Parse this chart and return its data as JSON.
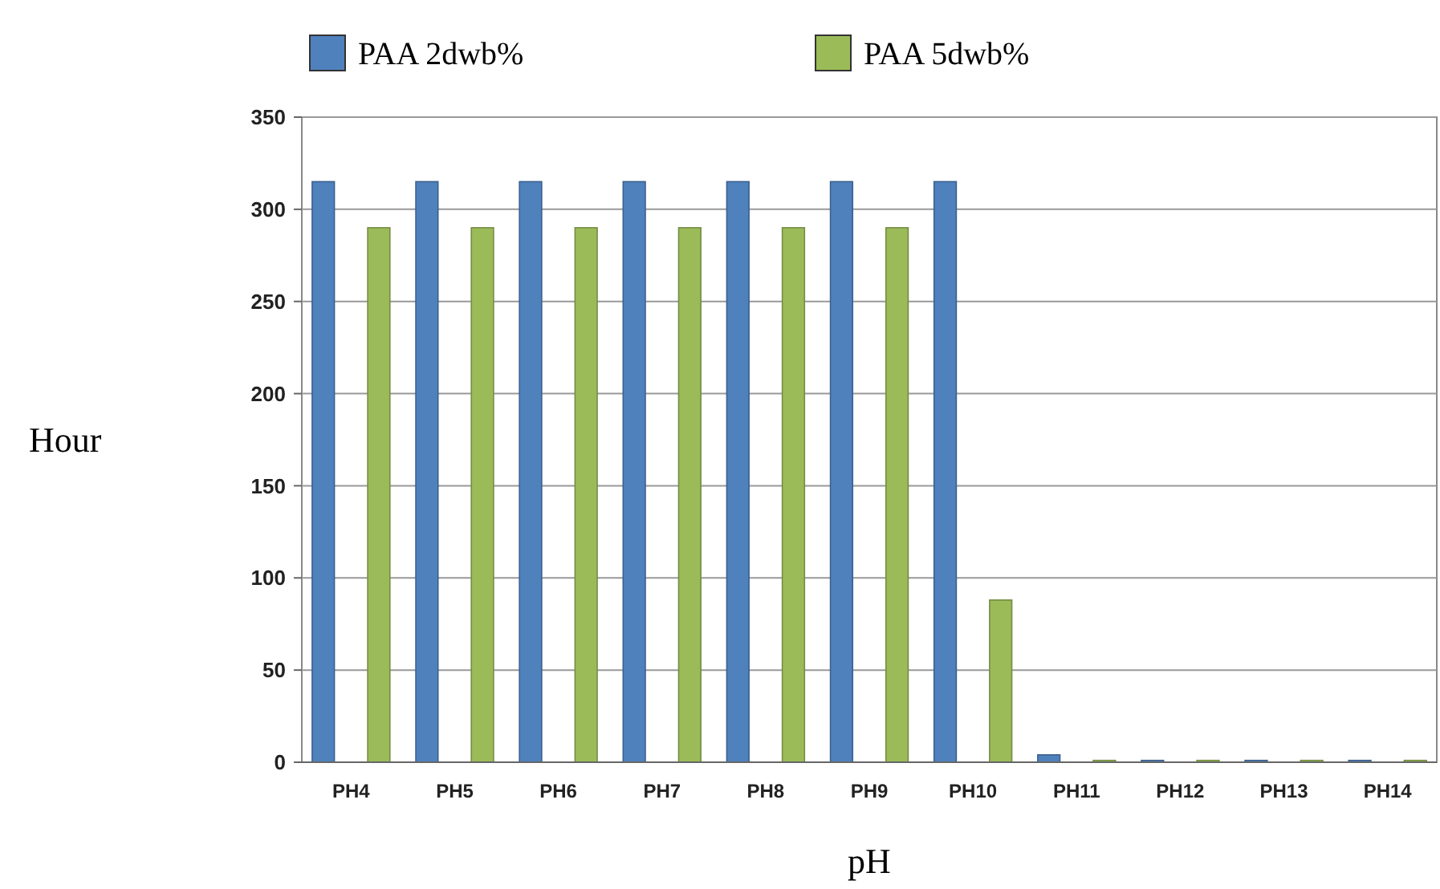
{
  "chart_data": {
    "type": "bar",
    "xlabel": "pH",
    "ylabel": "Hour",
    "categories": [
      "PH4",
      "PH5",
      "PH6",
      "PH7",
      "PH8",
      "PH9",
      "PH10",
      "PH11",
      "PH12",
      "PH13",
      "PH14"
    ],
    "series": [
      {
        "name": "PAA 2dwb%",
        "color": "#4f81bd",
        "values": [
          315,
          315,
          315,
          315,
          315,
          315,
          315,
          4,
          1,
          1,
          1
        ]
      },
      {
        "name": "PAA 5dwb%",
        "color": "#9bbb59",
        "values": [
          290,
          290,
          290,
          290,
          290,
          290,
          88,
          1,
          1,
          1,
          1
        ]
      }
    ],
    "ylim": [
      0,
      350
    ],
    "yticks": [
      0,
      50,
      100,
      150,
      200,
      250,
      300,
      350
    ],
    "grid": "y",
    "legend": "top"
  }
}
